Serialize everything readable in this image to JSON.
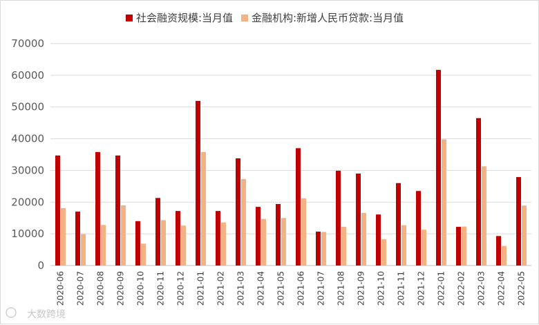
{
  "chart_data": {
    "type": "bar",
    "legend_position": "top",
    "grid": true,
    "ylim": [
      0,
      70000
    ],
    "yticks": [
      "0",
      "10000",
      "20000",
      "30000",
      "40000",
      "50000",
      "60000",
      "70000"
    ],
    "categories": [
      "2020-06",
      "2020-07",
      "2020-08",
      "2020-09",
      "2020-10",
      "2020-11",
      "2020-12",
      "2021-01",
      "2021-02",
      "2021-03",
      "2021-04",
      "2021-05",
      "2021-06",
      "2021-07",
      "2021-08",
      "2021-09",
      "2021-10",
      "2021-11",
      "2021-12",
      "2022-01",
      "2022-02",
      "2022-03",
      "2022-04",
      "2022-05"
    ],
    "series": [
      {
        "name": "社会融资规模:当月值",
        "color": "#c00000",
        "values": [
          34700,
          17000,
          35800,
          34700,
          14000,
          21300,
          17200,
          51900,
          17200,
          33800,
          18500,
          19400,
          37000,
          10700,
          29900,
          29000,
          16100,
          26000,
          23500,
          61700,
          12200,
          46500,
          9300,
          27900
        ]
      },
      {
        "name": "金融机构:新增人民币贷款:当月值",
        "color": "#f4b183",
        "values": [
          18100,
          9900,
          12800,
          19000,
          6900,
          14300,
          12600,
          35800,
          13600,
          27300,
          14700,
          15000,
          21200,
          10600,
          12200,
          16600,
          8300,
          12700,
          11300,
          39800,
          12300,
          31300,
          6200,
          18900
        ]
      }
    ]
  },
  "watermark": {
    "text": "大数跨境"
  }
}
